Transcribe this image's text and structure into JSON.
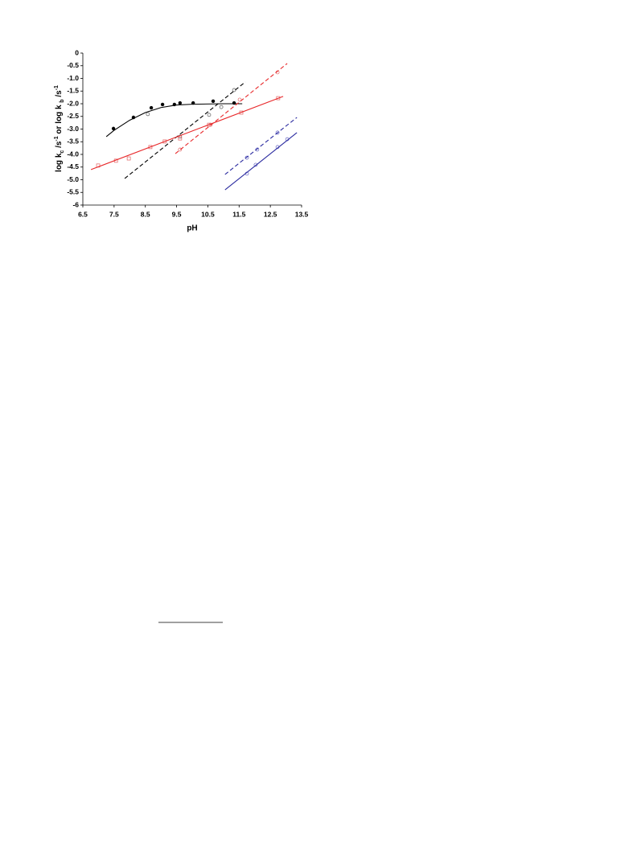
{
  "chart_data": {
    "type": "scatter",
    "x_label": "pH",
    "y_label_parts": [
      "log k",
      "c",
      " /s",
      "-1",
      " or log k ",
      "b",
      " /s",
      "-1"
    ],
    "xlim": [
      6.5,
      13.5
    ],
    "ylim": [
      -6,
      0
    ],
    "xticks": [
      6.5,
      7.5,
      8.5,
      9.5,
      10.5,
      11.5,
      12.5,
      13.5
    ],
    "yticks": [
      0,
      -0.5,
      {
        "value": -1,
        "label": "-1.0"
      },
      -1.5,
      {
        "value": -2,
        "label": "-2.0"
      },
      -2.5,
      {
        "value": -3,
        "label": "-3.0"
      },
      -3.5,
      {
        "value": -4,
        "label": "-4.0"
      },
      -4.5,
      {
        "value": -5,
        "label": "-5.0"
      },
      -5.5,
      -6
    ],
    "series": [
      {
        "kind": "points",
        "marker": "filled-circle",
        "color": "#000000",
        "x": [
          7.48,
          8.12,
          8.69,
          9.05,
          9.43,
          9.61,
          10.03,
          10.67,
          11.34
        ],
        "values": [
          -2.98,
          -2.54,
          -2.16,
          -2.03,
          -2.03,
          -1.97,
          -1.97,
          -1.9,
          -1.97
        ]
      },
      {
        "kind": "line",
        "dash": false,
        "color": "#000000",
        "x": [
          7.25,
          7.5,
          8.0,
          8.5,
          9.0,
          9.5,
          10.0,
          11.0,
          11.6
        ],
        "values": [
          -3.3,
          -3.05,
          -2.65,
          -2.35,
          -2.15,
          -2.05,
          -2.02,
          -2.0,
          -2.0
        ]
      },
      {
        "kind": "points",
        "marker": "open-circle",
        "color": "#555555",
        "x": [
          8.58,
          9.61,
          10.54,
          10.93,
          11.34
        ],
        "values": [
          -2.41,
          -3.3,
          -2.44,
          -2.13,
          -1.46
        ]
      },
      {
        "kind": "line",
        "dash": true,
        "color": "#000000",
        "x": [
          7.84,
          11.7
        ],
        "values": [
          -4.95,
          -1.14
        ]
      },
      {
        "kind": "points",
        "marker": "open-square",
        "color": "#e06060",
        "x": [
          6.99,
          7.56,
          7.97,
          8.66,
          9.12,
          9.61,
          10.54,
          11.57,
          12.75
        ],
        "values": [
          -4.44,
          -4.25,
          -4.16,
          -3.71,
          -3.49,
          -3.37,
          -2.83,
          -2.35,
          -1.78
        ]
      },
      {
        "kind": "line",
        "dash": false,
        "color": "#e8282a",
        "x": [
          6.76,
          12.91
        ],
        "values": [
          -4.6,
          -1.71
        ]
      },
      {
        "kind": "points",
        "marker": "open-circle",
        "color": "#e06060",
        "x": [
          9.61,
          10.59,
          11.52,
          12.73
        ],
        "values": [
          -3.81,
          -2.83,
          -1.84,
          -0.76
        ]
      },
      {
        "kind": "line",
        "dash": true,
        "color": "#e8282a",
        "x": [
          9.46,
          13.04
        ],
        "values": [
          -3.97,
          -0.41
        ]
      },
      {
        "kind": "points",
        "marker": "open-circle",
        "color": "#6060c0",
        "x": [
          11.75,
          12.08,
          12.73
        ],
        "values": [
          -4.13,
          -3.81,
          -3.14
        ]
      },
      {
        "kind": "line",
        "dash": true,
        "color": "#2b2ba0",
        "x": [
          11.05,
          13.35
        ],
        "values": [
          -4.79,
          -2.54
        ]
      },
      {
        "kind": "points",
        "marker": "open-circle",
        "color": "#6060c0",
        "x": [
          11.75,
          12.03,
          12.73,
          13.04
        ],
        "values": [
          -4.76,
          -4.41,
          -3.71,
          -3.4
        ]
      },
      {
        "kind": "line",
        "dash": false,
        "color": "#2b2ba0",
        "x": [
          11.05,
          13.35
        ],
        "values": [
          -5.4,
          -3.14
        ]
      }
    ]
  }
}
